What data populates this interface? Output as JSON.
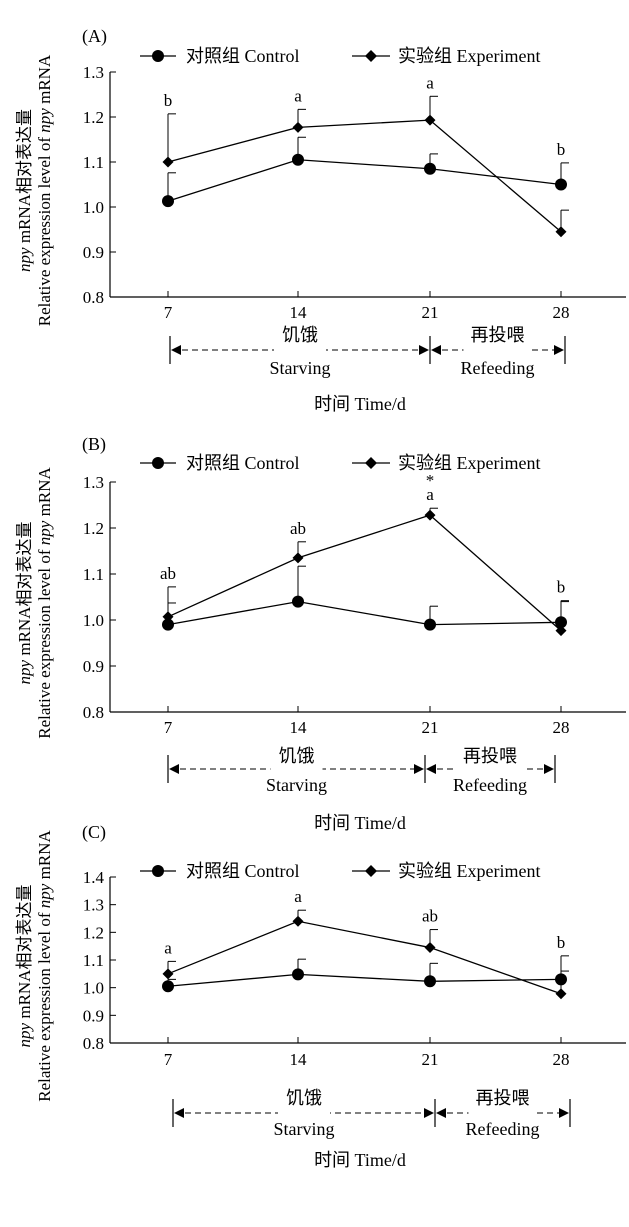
{
  "figure": {
    "panels": [
      {
        "label": "(A)"
      },
      {
        "label": "(B)"
      },
      {
        "label": "(C)"
      }
    ],
    "ylabel_line1_italic": "npy",
    "ylabel_line1_rest": " mRNA相对表达量",
    "ylabel_line2_prefix": "Relative expression level of ",
    "ylabel_line2_italic": "npy",
    "ylabel_line2_suffix": " mRNA",
    "xlabel": "时间 Time/d",
    "legend": {
      "control": "对照组 Control",
      "experiment": "实验组 Experiment"
    },
    "phases": {
      "starving_cn": "饥饿",
      "starving_en": "Starving",
      "refeeding_cn": "再投喂",
      "refeeding_en": "Refeeding"
    }
  },
  "chart_data": [
    {
      "type": "line",
      "title": "(A)",
      "x": [
        7,
        14,
        21,
        28
      ],
      "xlabel": "时间 Time/d",
      "ylabel": "npy mRNA相对表达量 Relative expression level of npy mRNA",
      "yticks": [
        "0.8",
        "0.9",
        "1.0",
        "1.1",
        "1.2",
        "1.3"
      ],
      "ylim": [
        0.8,
        1.3
      ],
      "series": [
        {
          "name": "对照组 Control",
          "marker": "circle",
          "values": [
            1.013,
            1.105,
            1.085,
            1.05
          ],
          "errors": [
            0.063,
            0.05,
            0.033,
            0.048
          ]
        },
        {
          "name": "实验组 Experiment",
          "marker": "diamond",
          "values": [
            1.1,
            1.177,
            1.193,
            0.945
          ],
          "errors": [
            0.107,
            0.04,
            0.053,
            0.048
          ]
        }
      ],
      "annotations": [
        "b",
        "a",
        "a",
        "b"
      ]
    },
    {
      "type": "line",
      "title": "(B)",
      "x": [
        7,
        14,
        21,
        28
      ],
      "xlabel": "时间 Time/d",
      "ylabel": "npy mRNA相对表达量 Relative expression level of npy mRNA",
      "yticks": [
        "0.8",
        "0.9",
        "1.0",
        "1.1",
        "1.2",
        "1.3"
      ],
      "ylim": [
        0.8,
        1.3
      ],
      "series": [
        {
          "name": "对照组 Control",
          "marker": "circle",
          "values": [
            0.99,
            1.04,
            0.99,
            0.995
          ],
          "errors": [
            0.047,
            0.077,
            0.04,
            0.045
          ]
        },
        {
          "name": "实验组 Experiment",
          "marker": "diamond",
          "values": [
            1.007,
            1.135,
            1.228,
            0.977
          ],
          "errors": [
            0.065,
            0.035,
            0.015,
            0.065
          ]
        }
      ],
      "annotations": [
        "ab",
        "ab",
        "a",
        "b"
      ],
      "significance": [
        "",
        "",
        "*",
        ""
      ]
    },
    {
      "type": "line",
      "title": "(C)",
      "x": [
        7,
        14,
        21,
        28
      ],
      "xlabel": "时间 Time/d",
      "ylabel": "npy mRNA相对表达量 Relative expression level of npy mRNA",
      "yticks": [
        "0.8",
        "0.9",
        "1.0",
        "1.1",
        "1.2",
        "1.3",
        "1.4"
      ],
      "ylim": [
        0.8,
        1.4
      ],
      "series": [
        {
          "name": "对照组 Control",
          "marker": "circle",
          "values": [
            1.005,
            1.048,
            1.023,
            1.03
          ],
          "errors": [
            0.025,
            0.055,
            0.065,
            0.03
          ]
        },
        {
          "name": "实验组 Experiment",
          "marker": "diamond",
          "values": [
            1.05,
            1.24,
            1.145,
            0.978
          ],
          "errors": [
            0.045,
            0.04,
            0.065,
            0.137
          ]
        }
      ],
      "annotations": [
        "a",
        "a",
        "ab",
        "b"
      ]
    }
  ]
}
